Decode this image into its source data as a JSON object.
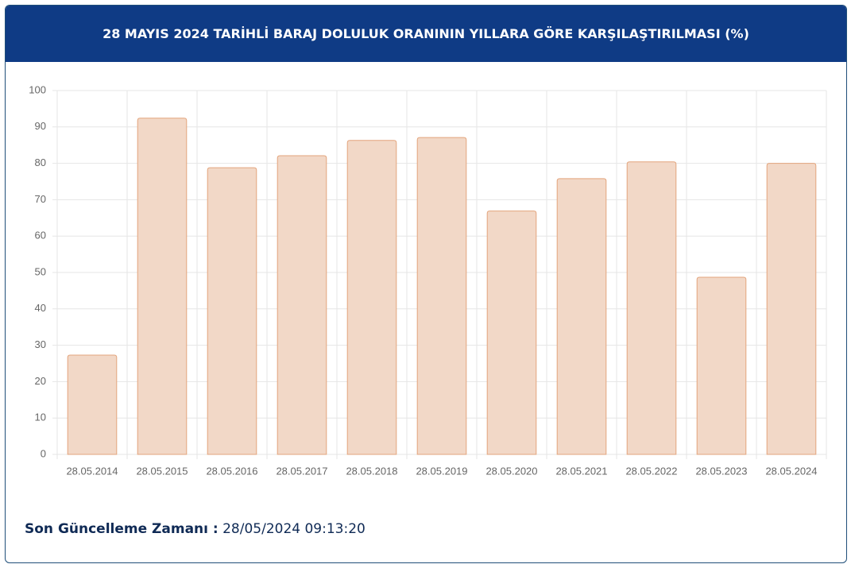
{
  "chart_data": {
    "type": "bar",
    "title": "28 MAYIS 2024 TARİHLİ BARAJ DOLULUK ORANININ YILLARA GÖRE KARŞILAŞTIRILMASI (%)",
    "categories": [
      "28.05.2014",
      "28.05.2015",
      "28.05.2016",
      "28.05.2017",
      "28.05.2018",
      "28.05.2019",
      "28.05.2020",
      "28.05.2021",
      "28.05.2022",
      "28.05.2023",
      "28.05.2024"
    ],
    "values": [
      27.3,
      92.4,
      78.8,
      82.1,
      86.3,
      87.1,
      66.9,
      75.8,
      80.4,
      48.7,
      80.0
    ],
    "color": "#f2d8c7",
    "border_color": "#e3a47c",
    "ylim": [
      0,
      100
    ],
    "yticks": [
      0,
      10,
      20,
      30,
      40,
      50,
      60,
      70,
      80,
      90,
      100
    ],
    "grid": true
  },
  "footer": {
    "label": "Son Güncelleme Zamanı :",
    "value": "28/05/2024 09:13:20"
  }
}
